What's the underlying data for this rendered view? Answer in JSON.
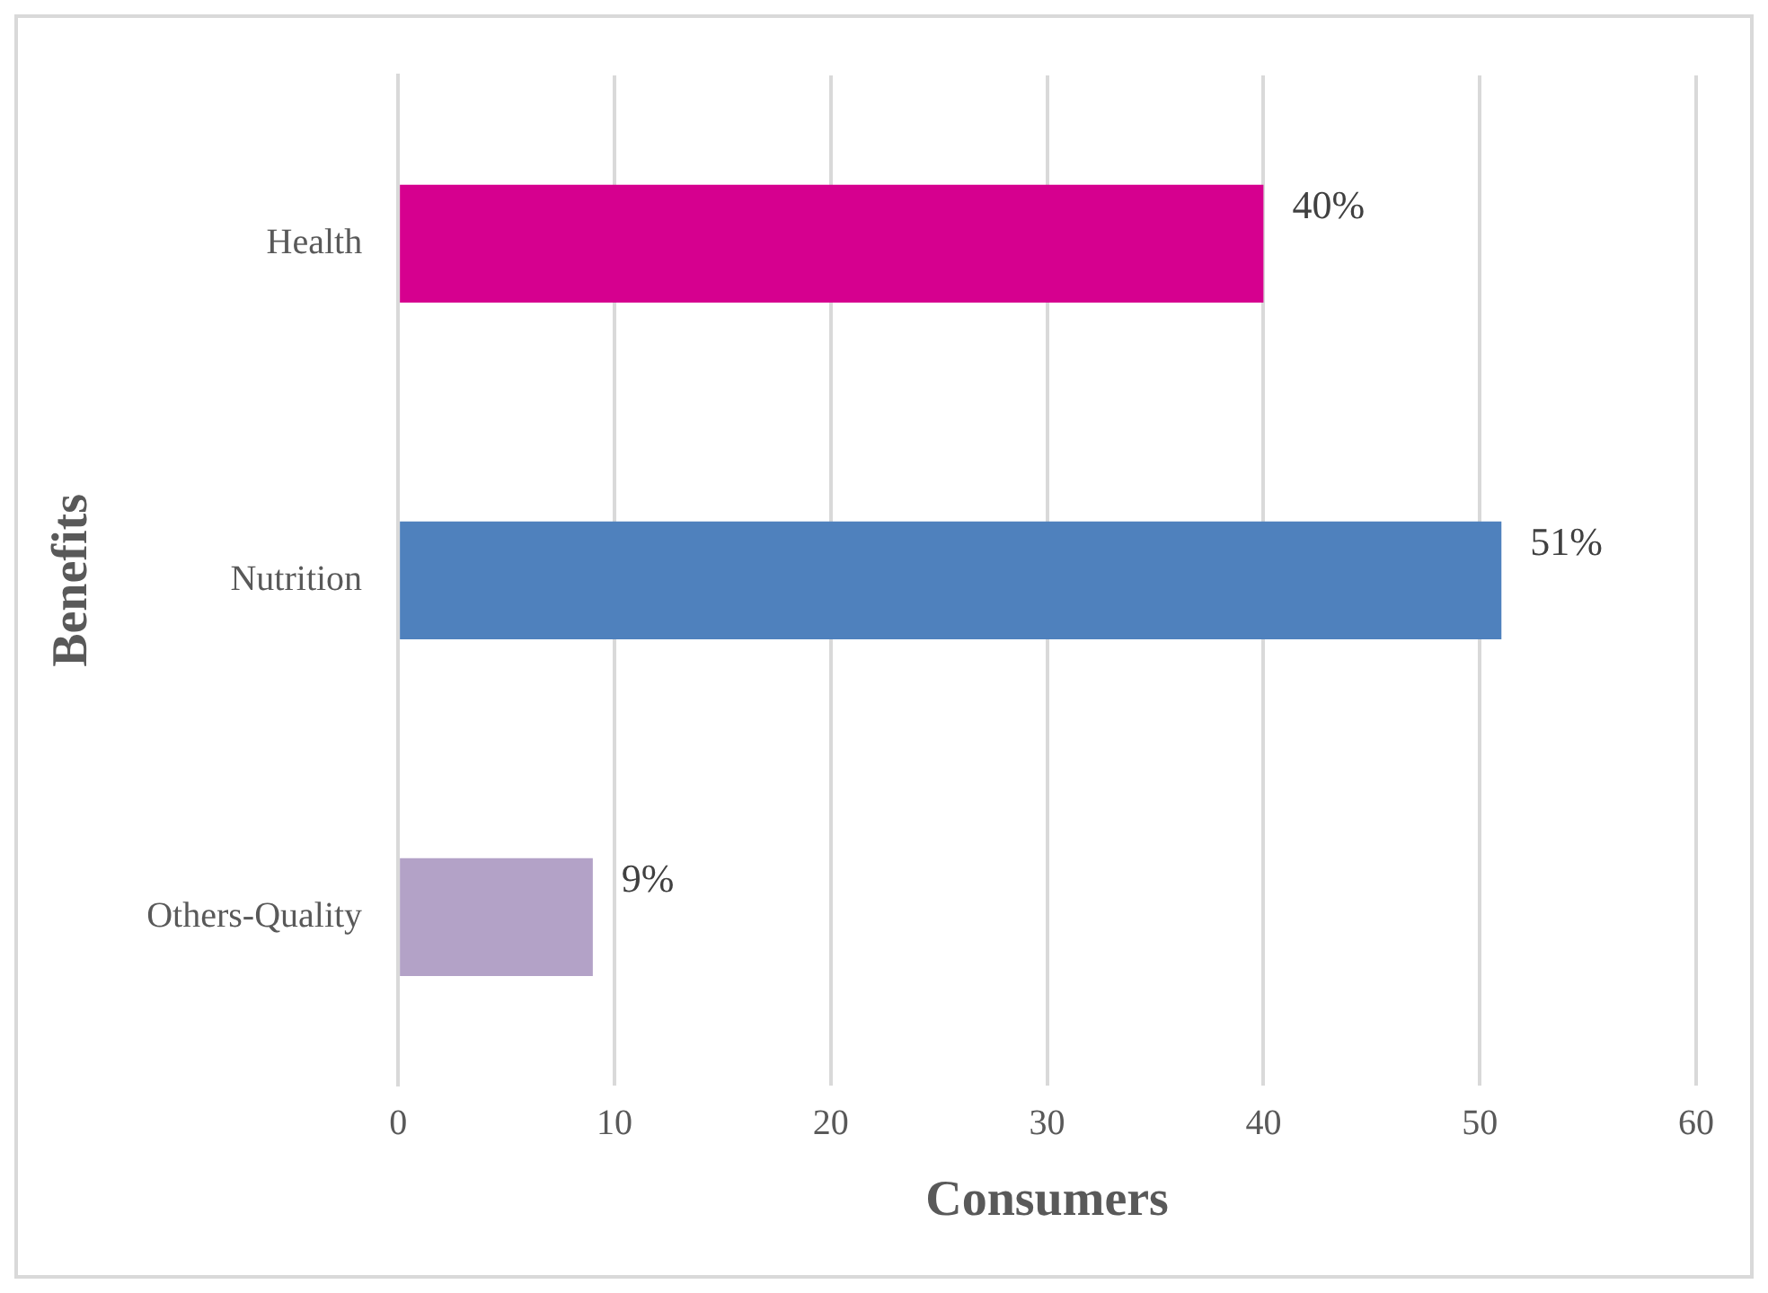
{
  "chart_data": {
    "type": "bar",
    "orientation": "horizontal",
    "xlabel": "Consumers",
    "ylabel": "Benefits",
    "categories": [
      "Health",
      "Nutrition",
      "Others-Quality"
    ],
    "values": [
      40,
      51,
      9
    ],
    "colors": [
      "#d6008f",
      "#4f81bd",
      "#b3a2c7"
    ],
    "value_labels": [
      "40%",
      "51%",
      "9%"
    ],
    "xlim": [
      0,
      60
    ],
    "xticks": [
      0,
      10,
      20,
      30,
      40,
      50,
      60
    ],
    "grid": "x",
    "legend": false
  }
}
